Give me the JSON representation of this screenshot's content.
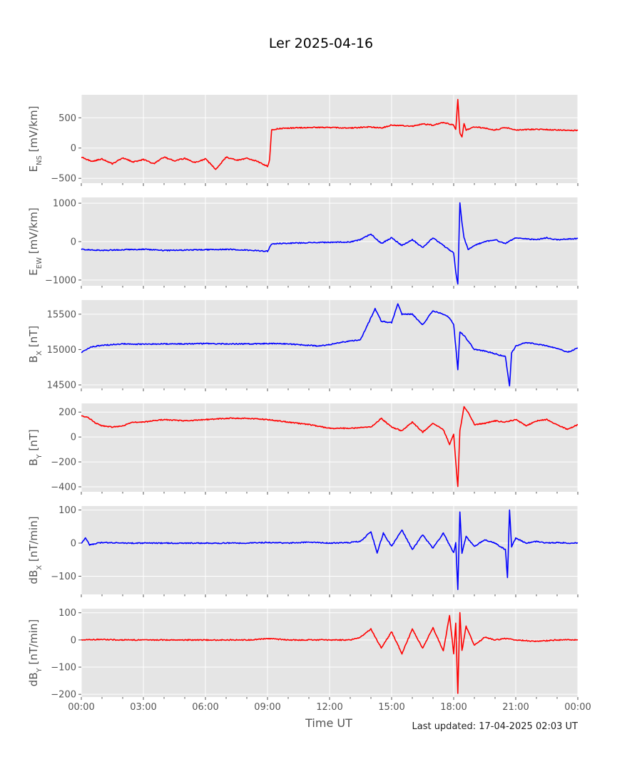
{
  "title": "Ler 2025-04-16",
  "xlabel": "Time UT",
  "last_updated": "Last updated: 17-04-2025 02:03 UT",
  "chart_data": [
    {
      "type": "line",
      "ylabel": {
        "main": "E",
        "sub": "NS",
        "unit": " [mV/km]"
      },
      "color": "#ff0000",
      "ylim": [
        -580,
        880
      ],
      "yticks": [
        -500,
        0,
        500
      ],
      "ytick_labels": [
        "−500",
        "0",
        "500"
      ],
      "x_hours": [
        0,
        0.5,
        1,
        1.5,
        2,
        2.5,
        3,
        3.5,
        4,
        4.5,
        5,
        5.5,
        6,
        6.5,
        7,
        7.5,
        8,
        8.5,
        9,
        9.1,
        9.2,
        9.5,
        10,
        11,
        12,
        13,
        14,
        14.5,
        15,
        15.5,
        16,
        16.5,
        17,
        17.5,
        18,
        18.1,
        18.2,
        18.3,
        18.4,
        18.5,
        18.6,
        19,
        19.5,
        20,
        20.5,
        21,
        22,
        23,
        24
      ],
      "values": [
        -150,
        -220,
        -180,
        -260,
        -160,
        -230,
        -190,
        -260,
        -150,
        -210,
        -170,
        -240,
        -180,
        -350,
        -150,
        -200,
        -170,
        -220,
        -300,
        -200,
        300,
        320,
        330,
        340,
        340,
        330,
        350,
        330,
        380,
        370,
        360,
        400,
        380,
        420,
        380,
        300,
        800,
        250,
        180,
        400,
        300,
        350,
        330,
        300,
        340,
        300,
        310,
        300,
        290
      ]
    },
    {
      "type": "line",
      "ylabel": {
        "main": "E",
        "sub": "EW",
        "unit": " [mV/km]"
      },
      "color": "#0000ff",
      "ylim": [
        -1150,
        1150
      ],
      "yticks": [
        -1000,
        0,
        1000
      ],
      "ytick_labels": [
        "−1000",
        "0",
        "1000"
      ],
      "x_hours": [
        0,
        1,
        2,
        3,
        4,
        5,
        6,
        7,
        8,
        9,
        9.2,
        9.5,
        10,
        11,
        12,
        13,
        13.5,
        14,
        14.5,
        15,
        15.5,
        16,
        16.5,
        17,
        17.5,
        18,
        18.1,
        18.2,
        18.3,
        18.4,
        18.5,
        18.7,
        19,
        19.5,
        20,
        20.5,
        21,
        22,
        22.5,
        23,
        24
      ],
      "values": [
        -200,
        -230,
        -210,
        -200,
        -230,
        -220,
        -210,
        -200,
        -220,
        -250,
        -60,
        -50,
        -40,
        -30,
        -20,
        -10,
        50,
        200,
        -50,
        100,
        -100,
        50,
        -150,
        100,
        -100,
        -300,
        -800,
        -1100,
        1000,
        500,
        100,
        -200,
        -100,
        0,
        50,
        -50,
        100,
        50,
        100,
        50,
        80
      ]
    },
    {
      "type": "line",
      "ylabel": {
        "main": "B",
        "sub": "X",
        "unit": " [nT]"
      },
      "color": "#0000ff",
      "ylim": [
        14450,
        15700
      ],
      "yticks": [
        14500,
        15000,
        15500
      ],
      "ytick_labels": [
        "14500",
        "15000",
        "15500"
      ],
      "x_hours": [
        0,
        0.5,
        1,
        2,
        3,
        4,
        5,
        6,
        7,
        8,
        9,
        10,
        11,
        11.5,
        12,
        12.5,
        13,
        13.5,
        14,
        14.2,
        14.5,
        15,
        15.3,
        15.5,
        16,
        16.5,
        17,
        17.5,
        17.8,
        18,
        18.2,
        18.3,
        18.5,
        19,
        19.5,
        20,
        20.5,
        20.7,
        20.8,
        21,
        21.5,
        22,
        22.5,
        23,
        23.5,
        24
      ],
      "values": [
        14960,
        15040,
        15060,
        15080,
        15075,
        15080,
        15080,
        15085,
        15080,
        15080,
        15085,
        15080,
        15060,
        15050,
        15070,
        15100,
        15120,
        15140,
        15450,
        15580,
        15400,
        15380,
        15650,
        15500,
        15500,
        15350,
        15550,
        15500,
        15450,
        15350,
        14720,
        15250,
        15200,
        15000,
        14980,
        14940,
        14900,
        14480,
        14950,
        15050,
        15100,
        15080,
        15050,
        15020,
        14960,
        15020
      ]
    },
    {
      "type": "line",
      "ylabel": {
        "main": "B",
        "sub": "Y",
        "unit": " [nT]"
      },
      "color": "#ff0000",
      "ylim": [
        -440,
        270
      ],
      "yticks": [
        -400,
        -200,
        0,
        200
      ],
      "ytick_labels": [
        "−400",
        "−200",
        "0",
        "200"
      ],
      "x_hours": [
        0,
        0.3,
        0.7,
        1,
        1.5,
        2,
        2.5,
        3,
        4,
        5,
        6,
        7,
        8,
        9,
        10,
        11,
        12,
        13,
        14,
        14.5,
        15,
        15.5,
        16,
        16.5,
        17,
        17.5,
        17.8,
        18,
        18.1,
        18.2,
        18.3,
        18.5,
        18.7,
        19,
        19.5,
        20,
        20.5,
        21,
        21.5,
        22,
        22.5,
        23,
        23.5,
        24
      ],
      "values": [
        170,
        160,
        110,
        90,
        80,
        90,
        120,
        120,
        140,
        130,
        140,
        150,
        150,
        140,
        120,
        100,
        70,
        70,
        80,
        150,
        80,
        50,
        120,
        40,
        110,
        60,
        -60,
        20,
        -200,
        -400,
        50,
        240,
        200,
        100,
        110,
        130,
        120,
        140,
        90,
        130,
        140,
        100,
        60,
        100
      ]
    },
    {
      "type": "line",
      "ylabel": {
        "main": "dB",
        "sub": "X",
        "unit": " [nT/min]"
      },
      "color": "#0000ff",
      "ylim": [
        -155,
        112
      ],
      "yticks": [
        -100,
        0,
        100
      ],
      "ytick_labels": [
        "−100",
        "0",
        "100"
      ],
      "x_hours": [
        0,
        0.2,
        0.4,
        1,
        2,
        3,
        4,
        5,
        6,
        7,
        8,
        9,
        10,
        11,
        12,
        13,
        13.5,
        14,
        14.3,
        14.6,
        15,
        15.5,
        16,
        16.5,
        17,
        17.5,
        18,
        18.1,
        18.2,
        18.3,
        18.4,
        18.6,
        19,
        19.5,
        20,
        20.5,
        20.6,
        20.7,
        20.8,
        21,
        21.5,
        22,
        22.5,
        23,
        23.5,
        24
      ],
      "values": [
        0,
        15,
        -5,
        2,
        0,
        0,
        0,
        0,
        0,
        0,
        0,
        2,
        0,
        3,
        0,
        2,
        5,
        35,
        -30,
        30,
        -10,
        40,
        -20,
        25,
        -15,
        30,
        -30,
        0,
        -140,
        95,
        -30,
        20,
        -10,
        10,
        0,
        -20,
        -105,
        100,
        -10,
        15,
        0,
        5,
        0,
        2,
        0,
        0
      ]
    },
    {
      "type": "line",
      "ylabel": {
        "main": "dB",
        "sub": "Y",
        "unit": " [nT/min]"
      },
      "color": "#ff0000",
      "ylim": [
        -210,
        115
      ],
      "yticks": [
        -200,
        -100,
        0,
        100
      ],
      "ytick_labels": [
        "−200",
        "−100",
        "0",
        "100"
      ],
      "x_hours": [
        0,
        1,
        2,
        3,
        4,
        5,
        6,
        7,
        8,
        9,
        10,
        11,
        12,
        13,
        13.5,
        14,
        14.5,
        15,
        15.5,
        16,
        16.5,
        17,
        17.5,
        17.8,
        18,
        18.1,
        18.2,
        18.3,
        18.4,
        18.6,
        19,
        19.5,
        20,
        20.5,
        21,
        22,
        23,
        24
      ],
      "values": [
        0,
        2,
        0,
        0,
        0,
        0,
        0,
        0,
        0,
        5,
        0,
        0,
        0,
        0,
        10,
        40,
        -30,
        30,
        -50,
        40,
        -30,
        45,
        -40,
        90,
        -50,
        60,
        -195,
        100,
        -40,
        50,
        -20,
        10,
        0,
        5,
        0,
        -5,
        0,
        0
      ]
    }
  ],
  "x_ticks": [
    "00:00",
    "03:00",
    "06:00",
    "09:00",
    "12:00",
    "15:00",
    "18:00",
    "21:00",
    "00:00"
  ]
}
